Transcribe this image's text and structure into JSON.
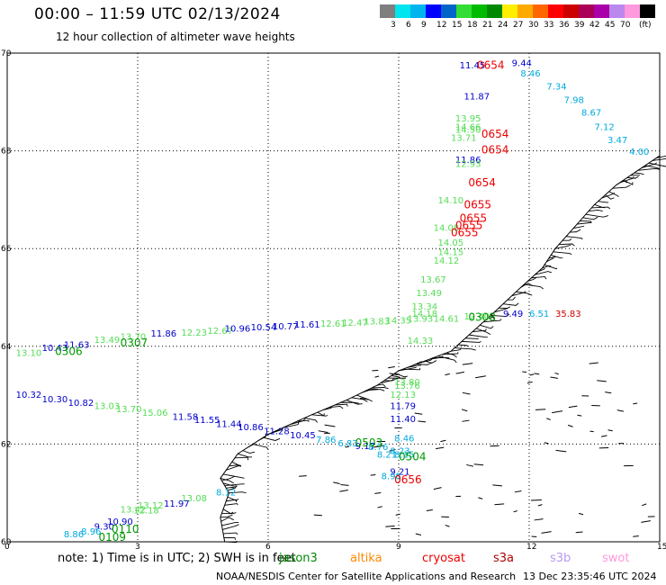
{
  "title": "00:00 – 11:59 UTC 02/13/2024",
  "subtitle": "12 hour collection of altimeter wave heights",
  "scale": {
    "unit": "(ft)",
    "ticks": [
      "3",
      "6",
      "9",
      "12",
      "15",
      "18",
      "21",
      "24",
      "27",
      "30",
      "33",
      "36",
      "39",
      "42",
      "45",
      "70"
    ],
    "colors": [
      "#7f7f7f",
      "#00e5ee",
      "#00b4ee",
      "#0000ff",
      "#0064c8",
      "#33dd33",
      "#00bb00",
      "#008800",
      "#ffee00",
      "#ffaa00",
      "#ff6600",
      "#ff0000",
      "#cc0000",
      "#aa0055",
      "#aa00aa",
      "#bb88ee",
      "#ff99dd",
      "#000000"
    ]
  },
  "axes": {
    "lat_labels": [
      "70",
      "68",
      "66",
      "64",
      "62",
      "60"
    ],
    "lon_labels": [
      "0",
      "3",
      "6",
      "9",
      "12",
      "15"
    ]
  },
  "heights": [
    {
      "v": "11.45",
      "lon": 10.4,
      "lat": 69.69,
      "c": "#0000cc"
    },
    {
      "v": "9.44",
      "lon": 11.6,
      "lat": 69.73,
      "c": "#0000cc"
    },
    {
      "v": "8.46",
      "lon": 11.8,
      "lat": 69.52,
      "c": "#00aadd"
    },
    {
      "v": "7.34",
      "lon": 12.4,
      "lat": 69.25,
      "c": "#00aadd"
    },
    {
      "v": "7.98",
      "lon": 12.8,
      "lat": 68.98,
      "c": "#00aadd"
    },
    {
      "v": "8.67",
      "lon": 13.2,
      "lat": 68.72,
      "c": "#00aadd"
    },
    {
      "v": "7.12",
      "lon": 13.5,
      "lat": 68.43,
      "c": "#00aadd"
    },
    {
      "v": "3.47",
      "lon": 13.8,
      "lat": 68.16,
      "c": "#00aadd"
    },
    {
      "v": "4.00",
      "lon": 14.3,
      "lat": 67.92,
      "c": "#00aadd"
    },
    {
      "v": "11.87",
      "lon": 10.5,
      "lat": 69.05,
      "c": "#0000cc"
    },
    {
      "v": "13.95",
      "lon": 10.3,
      "lat": 68.6,
      "c": "#55dd55"
    },
    {
      "v": "14.66",
      "lon": 10.3,
      "lat": 68.43,
      "c": "#55dd55"
    },
    {
      "v": "14.50",
      "lon": 10.3,
      "lat": 68.37,
      "c": "#55dd55"
    },
    {
      "v": "13.71",
      "lon": 10.2,
      "lat": 68.2,
      "c": "#55dd55"
    },
    {
      "v": "11.86",
      "lon": 10.3,
      "lat": 67.75,
      "c": "#0000cc"
    },
    {
      "v": "12.93",
      "lon": 10.3,
      "lat": 67.67,
      "c": "#55dd55"
    },
    {
      "v": "14.10",
      "lon": 9.9,
      "lat": 66.92,
      "c": "#55dd55"
    },
    {
      "v": "14.08",
      "lon": 9.8,
      "lat": 66.36,
      "c": "#55dd55"
    },
    {
      "v": "14.05",
      "lon": 9.9,
      "lat": 66.06,
      "c": "#55dd55"
    },
    {
      "v": "14.15",
      "lon": 9.9,
      "lat": 65.87,
      "c": "#55dd55"
    },
    {
      "v": "14.12",
      "lon": 9.8,
      "lat": 65.69,
      "c": "#55dd55"
    },
    {
      "v": "13.67",
      "lon": 9.5,
      "lat": 65.3,
      "c": "#55dd55"
    },
    {
      "v": "13.49",
      "lon": 9.4,
      "lat": 65.03,
      "c": "#55dd55"
    },
    {
      "v": "13.34",
      "lon": 9.3,
      "lat": 64.75,
      "c": "#55dd55"
    },
    {
      "v": "14.18",
      "lon": 9.3,
      "lat": 64.6,
      "c": "#55dd55"
    },
    {
      "v": "14.33",
      "lon": 9.2,
      "lat": 64.05,
      "c": "#55dd55"
    },
    {
      "v": "13.10",
      "lon": 0.2,
      "lat": 63.8,
      "c": "#55dd55"
    },
    {
      "v": "10.43",
      "lon": 0.8,
      "lat": 63.9,
      "c": "#0000cc"
    },
    {
      "v": "11.63",
      "lon": 1.3,
      "lat": 63.97,
      "c": "#0000cc"
    },
    {
      "v": "13.49",
      "lon": 2.0,
      "lat": 64.07,
      "c": "#55dd55"
    },
    {
      "v": "13.70",
      "lon": 2.6,
      "lat": 64.13,
      "c": "#55dd55"
    },
    {
      "v": "11.86",
      "lon": 3.3,
      "lat": 64.2,
      "c": "#0000cc"
    },
    {
      "v": "12.23",
      "lon": 4.0,
      "lat": 64.22,
      "c": "#55dd55"
    },
    {
      "v": "12.67",
      "lon": 4.6,
      "lat": 64.25,
      "c": "#55dd55"
    },
    {
      "v": "10.96",
      "lon": 5.0,
      "lat": 64.3,
      "c": "#0000cc"
    },
    {
      "v": "10.54",
      "lon": 5.6,
      "lat": 64.33,
      "c": "#0000cc"
    },
    {
      "v": "10.77",
      "lon": 6.1,
      "lat": 64.35,
      "c": "#0000cc"
    },
    {
      "v": "11.61",
      "lon": 6.6,
      "lat": 64.38,
      "c": "#0000cc"
    },
    {
      "v": "12.61",
      "lon": 7.2,
      "lat": 64.4,
      "c": "#55dd55"
    },
    {
      "v": "12.47",
      "lon": 7.7,
      "lat": 64.42,
      "c": "#55dd55"
    },
    {
      "v": "13.83",
      "lon": 8.2,
      "lat": 64.45,
      "c": "#55dd55"
    },
    {
      "v": "14.35",
      "lon": 8.7,
      "lat": 64.47,
      "c": "#55dd55"
    },
    {
      "v": "13.93",
      "lon": 9.2,
      "lat": 64.5,
      "c": "#55dd55"
    },
    {
      "v": "14.61",
      "lon": 9.8,
      "lat": 64.5,
      "c": "#55dd55"
    },
    {
      "v": "12.40",
      "lon": 10.5,
      "lat": 64.55,
      "c": "#55dd55"
    },
    {
      "v": "9.49",
      "lon": 11.4,
      "lat": 64.6,
      "c": "#0000cc"
    },
    {
      "v": "6.51",
      "lon": 12.0,
      "lat": 64.6,
      "c": "#00aadd"
    },
    {
      "v": "35.83",
      "lon": 12.6,
      "lat": 64.6,
      "c": "#cc0000"
    },
    {
      "v": "13.80",
      "lon": 8.9,
      "lat": 63.2,
      "c": "#55dd55"
    },
    {
      "v": "13.76",
      "lon": 8.9,
      "lat": 63.13,
      "c": "#55dd55"
    },
    {
      "v": "12.13",
      "lon": 8.8,
      "lat": 62.95,
      "c": "#55dd55"
    },
    {
      "v": "11.79",
      "lon": 8.8,
      "lat": 62.72,
      "c": "#0000cc"
    },
    {
      "v": "11.40",
      "lon": 8.8,
      "lat": 62.45,
      "c": "#0000cc"
    },
    {
      "v": "10.32",
      "lon": 0.2,
      "lat": 62.95,
      "c": "#0000cc"
    },
    {
      "v": "10.30",
      "lon": 0.8,
      "lat": 62.85,
      "c": "#0000cc"
    },
    {
      "v": "10.82",
      "lon": 1.4,
      "lat": 62.78,
      "c": "#0000cc"
    },
    {
      "v": "13.03",
      "lon": 2.0,
      "lat": 62.72,
      "c": "#55dd55"
    },
    {
      "v": "13.70",
      "lon": 2.5,
      "lat": 62.65,
      "c": "#55dd55"
    },
    {
      "v": "15.06",
      "lon": 3.1,
      "lat": 62.58,
      "c": "#55dd55"
    },
    {
      "v": "11.58",
      "lon": 3.8,
      "lat": 62.5,
      "c": "#0000cc"
    },
    {
      "v": "11.55",
      "lon": 4.3,
      "lat": 62.43,
      "c": "#0000cc"
    },
    {
      "v": "11.44",
      "lon": 4.8,
      "lat": 62.35,
      "c": "#0000cc"
    },
    {
      "v": "10.86",
      "lon": 5.3,
      "lat": 62.28,
      "c": "#0000cc"
    },
    {
      "v": "11.28",
      "lon": 5.9,
      "lat": 62.2,
      "c": "#0000cc"
    },
    {
      "v": "10.45",
      "lon": 6.5,
      "lat": 62.12,
      "c": "#0000cc"
    },
    {
      "v": "7.86",
      "lon": 7.1,
      "lat": 62.03,
      "c": "#00aadd"
    },
    {
      "v": "6.83",
      "lon": 7.6,
      "lat": 61.95,
      "c": "#00aadd"
    },
    {
      "v": "9.17",
      "lon": 8.0,
      "lat": 61.9,
      "c": "#0000cc"
    },
    {
      "v": "8.76",
      "lon": 8.3,
      "lat": 61.88,
      "c": "#00aadd"
    },
    {
      "v": "8.46",
      "lon": 8.9,
      "lat": 62.05,
      "c": "#00aadd"
    },
    {
      "v": "8.23",
      "lon": 8.8,
      "lat": 61.8,
      "c": "#00aadd"
    },
    {
      "v": "8.21",
      "lon": 8.5,
      "lat": 61.72,
      "c": "#00aadd"
    },
    {
      "v": "8.15",
      "lon": 8.9,
      "lat": 61.72,
      "c": "#00aadd"
    },
    {
      "v": "9.21",
      "lon": 8.8,
      "lat": 61.37,
      "c": "#0000cc"
    },
    {
      "v": "8.98",
      "lon": 8.6,
      "lat": 61.28,
      "c": "#00aadd"
    },
    {
      "v": "13.08",
      "lon": 4.0,
      "lat": 60.83,
      "c": "#55dd55"
    },
    {
      "v": "8.12",
      "lon": 4.8,
      "lat": 60.95,
      "c": "#00aadd"
    },
    {
      "v": "11.97",
      "lon": 3.6,
      "lat": 60.72,
      "c": "#0000cc"
    },
    {
      "v": "13.12",
      "lon": 3.0,
      "lat": 60.68,
      "c": "#55dd55"
    },
    {
      "v": "12.18",
      "lon": 2.9,
      "lat": 60.58,
      "c": "#55dd55"
    },
    {
      "v": "13.42",
      "lon": 2.6,
      "lat": 60.6,
      "c": "#55dd55"
    },
    {
      "v": "10.90",
      "lon": 2.3,
      "lat": 60.35,
      "c": "#0000cc"
    },
    {
      "v": "9.30",
      "lon": 2.0,
      "lat": 60.25,
      "c": "#0000cc"
    },
    {
      "v": "8.96",
      "lon": 1.7,
      "lat": 60.15,
      "c": "#00aadd"
    },
    {
      "v": "8.86",
      "lon": 1.3,
      "lat": 60.09,
      "c": "#00aadd"
    }
  ],
  "time_labels": [
    {
      "t": "0654",
      "lon": 10.8,
      "lat": 69.68,
      "c": "#ee0000"
    },
    {
      "t": "0654",
      "lon": 10.9,
      "lat": 68.27,
      "c": "#ee0000"
    },
    {
      "t": "0654",
      "lon": 10.9,
      "lat": 67.95,
      "c": "#ee0000"
    },
    {
      "t": "0654",
      "lon": 10.6,
      "lat": 67.27,
      "c": "#ee0000"
    },
    {
      "t": "0655",
      "lon": 10.5,
      "lat": 66.82,
      "c": "#ee0000"
    },
    {
      "t": "0655",
      "lon": 10.4,
      "lat": 66.55,
      "c": "#ee0000"
    },
    {
      "t": "0655",
      "lon": 10.3,
      "lat": 66.4,
      "c": "#ee0000"
    },
    {
      "t": "0655",
      "lon": 10.2,
      "lat": 66.25,
      "c": "#ee0000"
    },
    {
      "t": "0308",
      "lon": 10.6,
      "lat": 64.52,
      "c": "#009900"
    },
    {
      "t": "0306",
      "lon": 1.1,
      "lat": 63.82,
      "c": "#009900"
    },
    {
      "t": "0307",
      "lon": 2.6,
      "lat": 64.0,
      "c": "#009900"
    },
    {
      "t": "0503",
      "lon": 8.0,
      "lat": 61.95,
      "c": "#009900"
    },
    {
      "t": "0504",
      "lon": 9.0,
      "lat": 61.67,
      "c": "#009900"
    },
    {
      "t": "0656",
      "lon": 8.9,
      "lat": 61.2,
      "c": "#ee0000"
    },
    {
      "t": "0110",
      "lon": 2.4,
      "lat": 60.18,
      "c": "#009900"
    },
    {
      "t": "0109",
      "lon": 2.1,
      "lat": 60.02,
      "c": "#009900"
    }
  ],
  "footer": {
    "note": "note:  1) Time is in UTC; 2) SWH is in feet",
    "satellites": [
      {
        "name": "jason3",
        "c": "#008800"
      },
      {
        "name": "altika",
        "c": "#ff8800"
      },
      {
        "name": "cryosat",
        "c": "#ee0000"
      },
      {
        "name": "s3a",
        "c": "#aa0000"
      },
      {
        "name": "s3b",
        "c": "#bb99ee"
      },
      {
        "name": "swot",
        "c": "#ff99dd"
      }
    ],
    "credit": "NOAA/NESDIS Center for Satellite Applications and Research",
    "timestamp": "13 Dec 23:35:46 UTC 2024"
  }
}
